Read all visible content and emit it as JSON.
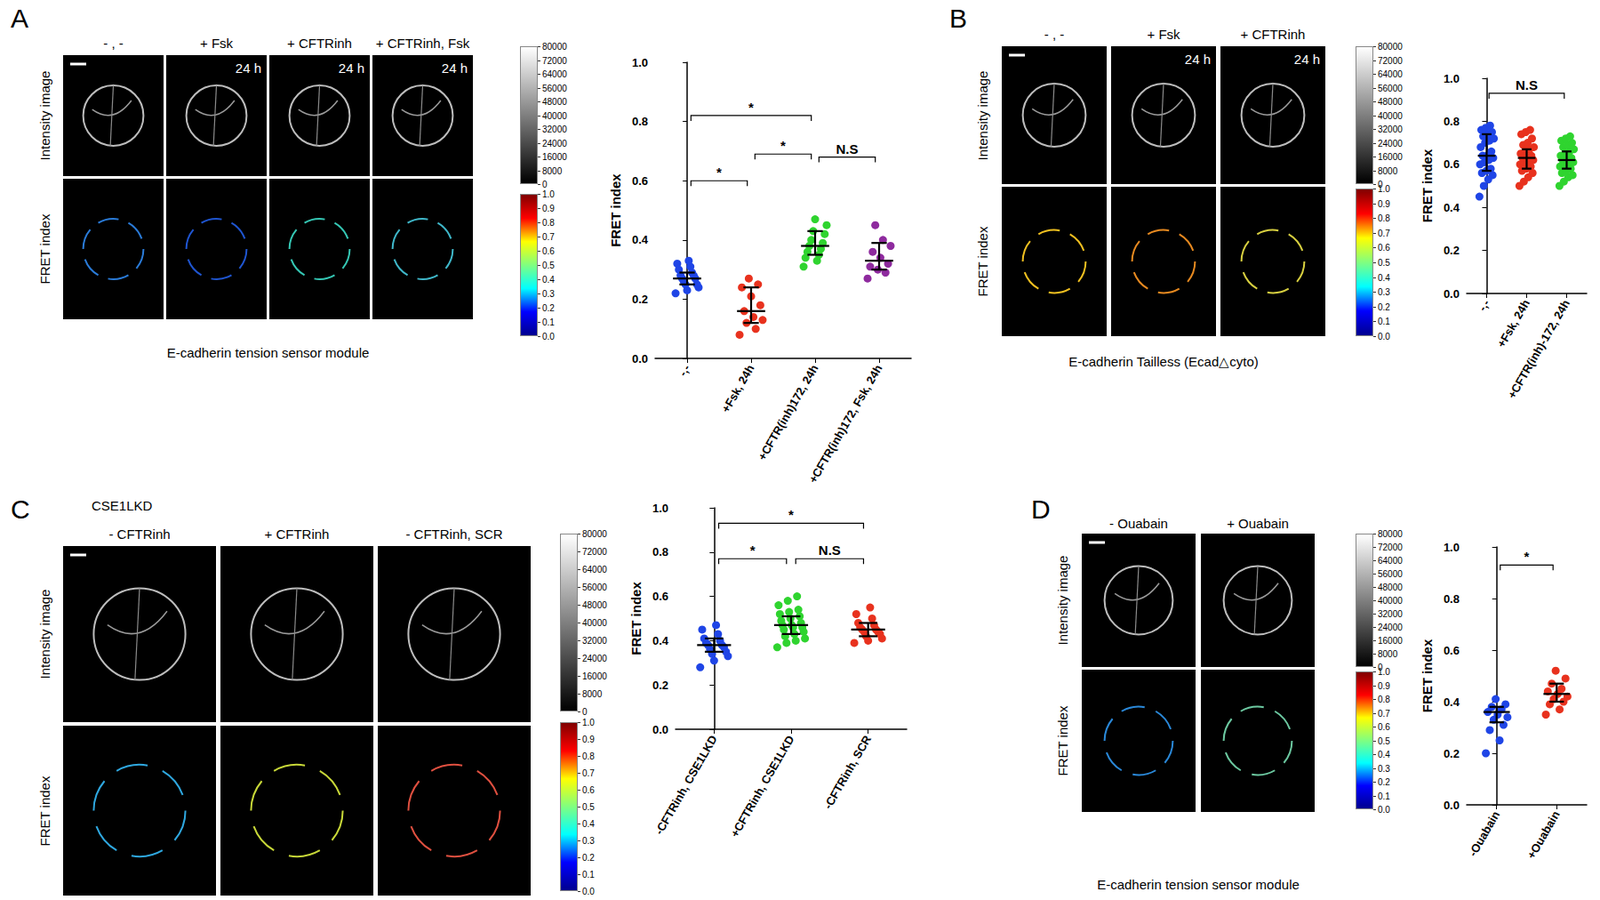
{
  "chart_data": [
    {
      "type": "scatter",
      "y_label": "FRET index",
      "categories": [
        "-,-",
        "+Fsk, 24h",
        "+CFTR(inh)172, 24h",
        "+CFTR(inh)172, Fsk, 24h"
      ],
      "colors": [
        "#1f45e6",
        "#e8321e",
        "#2fd42f",
        "#8e2a9e"
      ],
      "values": [
        [
          0.22,
          0.23,
          0.24,
          0.25,
          0.25,
          0.26,
          0.27,
          0.27,
          0.28,
          0.28,
          0.29,
          0.3,
          0.31,
          0.32,
          0.33
        ],
        [
          0.08,
          0.1,
          0.12,
          0.13,
          0.14,
          0.16,
          0.18,
          0.21,
          0.24,
          0.25,
          0.27
        ],
        [
          0.31,
          0.33,
          0.34,
          0.35,
          0.36,
          0.37,
          0.38,
          0.39,
          0.4,
          0.42,
          0.43,
          0.45,
          0.47
        ],
        [
          0.27,
          0.29,
          0.3,
          0.31,
          0.32,
          0.34,
          0.36,
          0.38,
          0.4,
          0.45
        ]
      ],
      "median": [
        0.27,
        0.16,
        0.38,
        0.33
      ],
      "iqr": [
        [
          0.25,
          0.29
        ],
        [
          0.12,
          0.24
        ],
        [
          0.35,
          0.43
        ],
        [
          0.3,
          0.39
        ]
      ],
      "annotations": [
        {
          "from": 0,
          "to": 1,
          "y": 0.6,
          "text": "*"
        },
        {
          "from": 1,
          "to": 2,
          "y": 0.69,
          "text": "*"
        },
        {
          "from": 0,
          "to": 2,
          "y": 0.82,
          "text": "*"
        },
        {
          "from": 2,
          "to": 3,
          "y": 0.68,
          "text": "N.S"
        }
      ],
      "ylim": [
        0,
        1
      ],
      "yticks": [
        {
          "value": 0,
          "label": "0.0"
        },
        {
          "value": 0.2,
          "label": "0.2"
        },
        {
          "value": 0.4,
          "label": "0.4"
        },
        {
          "value": 0.6,
          "label": "0.6"
        },
        {
          "value": 0.8,
          "label": "0.8"
        },
        {
          "value": 1,
          "label": "1.0"
        }
      ]
    },
    {
      "type": "scatter",
      "y_label": "FRET index",
      "categories": [
        "-,-",
        "+Fsk, 24h",
        "+CFTR(inh)-172, 24h"
      ],
      "colors": [
        "#1f45e6",
        "#e8321e",
        "#2fd42f"
      ],
      "values": [
        [
          0.45,
          0.5,
          0.53,
          0.55,
          0.56,
          0.57,
          0.58,
          0.6,
          0.61,
          0.62,
          0.63,
          0.64,
          0.64,
          0.66,
          0.68,
          0.7,
          0.71,
          0.72,
          0.73,
          0.74,
          0.75,
          0.76,
          0.77,
          0.78
        ],
        [
          0.5,
          0.52,
          0.54,
          0.56,
          0.57,
          0.58,
          0.59,
          0.6,
          0.61,
          0.62,
          0.62,
          0.63,
          0.63,
          0.64,
          0.65,
          0.66,
          0.67,
          0.68,
          0.69,
          0.7,
          0.72,
          0.74,
          0.75,
          0.76
        ],
        [
          0.5,
          0.52,
          0.54,
          0.55,
          0.56,
          0.57,
          0.58,
          0.59,
          0.6,
          0.61,
          0.61,
          0.62,
          0.62,
          0.63,
          0.64,
          0.65,
          0.66,
          0.67,
          0.68,
          0.69,
          0.7,
          0.71,
          0.72,
          0.73
        ]
      ],
      "median": [
        0.64,
        0.63,
        0.62
      ],
      "iqr": [
        [
          0.57,
          0.74
        ],
        [
          0.58,
          0.67
        ],
        [
          0.58,
          0.66
        ]
      ],
      "annotations": [
        {
          "from": 0,
          "to": 2,
          "y": 0.93,
          "text": "N.S"
        }
      ],
      "ylim": [
        0,
        1
      ],
      "yticks": [
        {
          "value": 0,
          "label": "0.0"
        },
        {
          "value": 0.2,
          "label": "0.2"
        },
        {
          "value": 0.4,
          "label": "0.4"
        },
        {
          "value": 0.6,
          "label": "0.6"
        },
        {
          "value": 0.8,
          "label": "0.8"
        },
        {
          "value": 1,
          "label": "1.0"
        }
      ]
    },
    {
      "type": "scatter",
      "y_label": "FRET index",
      "categories": [
        "-CFTRinh, CSE1LKD",
        "+CFTRinh, CSE1LKD",
        "-CFTRinh, SCR"
      ],
      "colors": [
        "#1f45e6",
        "#2fd42f",
        "#e8321e"
      ],
      "values": [
        [
          0.28,
          0.31,
          0.33,
          0.34,
          0.35,
          0.36,
          0.37,
          0.38,
          0.38,
          0.39,
          0.4,
          0.41,
          0.43,
          0.45,
          0.47
        ],
        [
          0.37,
          0.39,
          0.4,
          0.41,
          0.42,
          0.43,
          0.44,
          0.45,
          0.46,
          0.46,
          0.47,
          0.47,
          0.48,
          0.49,
          0.5,
          0.51,
          0.52,
          0.53,
          0.54,
          0.56,
          0.58,
          0.6
        ],
        [
          0.39,
          0.4,
          0.41,
          0.42,
          0.43,
          0.44,
          0.44,
          0.45,
          0.45,
          0.46,
          0.47,
          0.48,
          0.5,
          0.52,
          0.55
        ]
      ],
      "median": [
        0.38,
        0.47,
        0.45
      ],
      "iqr": [
        [
          0.35,
          0.41
        ],
        [
          0.43,
          0.51
        ],
        [
          0.42,
          0.48
        ]
      ],
      "annotations": [
        {
          "from": 0,
          "to": 1,
          "y": 0.77,
          "text": "*"
        },
        {
          "from": 1,
          "to": 2,
          "y": 0.77,
          "text": "N.S"
        },
        {
          "from": 0,
          "to": 2,
          "y": 0.93,
          "text": "*"
        }
      ],
      "ylim": [
        0,
        1
      ],
      "yticks": [
        {
          "value": 0,
          "label": "0.0"
        },
        {
          "value": 0.2,
          "label": "0.2"
        },
        {
          "value": 0.4,
          "label": "0.4"
        },
        {
          "value": 0.6,
          "label": "0.6"
        },
        {
          "value": 0.8,
          "label": "0.8"
        },
        {
          "value": 1,
          "label": "1.0"
        }
      ]
    },
    {
      "type": "scatter",
      "y_label": "FRET index",
      "categories": [
        "-Ouabain",
        "+Ouabain"
      ],
      "colors": [
        "#1f45e6",
        "#e8321e"
      ],
      "values": [
        [
          0.2,
          0.25,
          0.29,
          0.31,
          0.33,
          0.34,
          0.35,
          0.36,
          0.37,
          0.38,
          0.39,
          0.41
        ],
        [
          0.35,
          0.37,
          0.39,
          0.4,
          0.41,
          0.42,
          0.43,
          0.44,
          0.45,
          0.47,
          0.49,
          0.52
        ]
      ],
      "median": [
        0.36,
        0.43
      ],
      "iqr": [
        [
          0.32,
          0.38
        ],
        [
          0.4,
          0.47
        ]
      ],
      "annotations": [
        {
          "from": 0,
          "to": 1,
          "y": 0.93,
          "text": "*"
        }
      ],
      "ylim": [
        0,
        1
      ],
      "yticks": [
        {
          "value": 0,
          "label": "0.0"
        },
        {
          "value": 0.2,
          "label": "0.2"
        },
        {
          "value": 0.4,
          "label": "0.4"
        },
        {
          "value": 0.6,
          "label": "0.6"
        },
        {
          "value": 0.8,
          "label": "0.8"
        },
        {
          "value": 1,
          "label": "1.0"
        }
      ]
    }
  ],
  "figure": {
    "row_labels": [
      "Intensity image",
      "FRET index"
    ],
    "colorbars": {
      "intensity": {
        "range": [
          0,
          80000
        ],
        "ticks": [
          0,
          8000,
          16000,
          24000,
          32000,
          40000,
          48000,
          56000,
          64000,
          72000,
          80000
        ]
      },
      "fret": {
        "range": [
          0,
          1
        ],
        "ticks": [
          {
            "value": 0,
            "label": "0.0"
          },
          {
            "value": 0.1,
            "label": "0.1"
          },
          {
            "value": 0.2,
            "label": "0.2"
          },
          {
            "value": 0.3,
            "label": "0.3"
          },
          {
            "value": 0.4,
            "label": "0.4"
          },
          {
            "value": 0.5,
            "label": "0.5"
          },
          {
            "value": 0.6,
            "label": "0.6"
          },
          {
            "value": 0.7,
            "label": "0.7"
          },
          {
            "value": 0.8,
            "label": "0.8"
          },
          {
            "value": 0.9,
            "label": "0.9"
          },
          {
            "value": 1,
            "label": "1.0"
          }
        ]
      }
    },
    "panels": [
      {
        "label": "A",
        "columns": [
          {
            "header": "- , -"
          },
          {
            "header": "+ Fsk",
            "time": "24 h"
          },
          {
            "header": "+ CFTRinh",
            "time": "24 h"
          },
          {
            "header": "+ CFTRinh, Fsk",
            "time": "24 h"
          }
        ],
        "caption": "E-cadherin tension sensor module"
      },
      {
        "label": "B",
        "columns": [
          {
            "header": "- , -"
          },
          {
            "header": "+ Fsk",
            "time": "24 h"
          },
          {
            "header": "+ CFTRinh",
            "time": "24 h"
          }
        ],
        "caption": "E-cadherin Tailless (Ecad△cyto)"
      },
      {
        "label": "C",
        "title": "CSE1LKD",
        "columns": [
          {
            "header": "- CFTRinh"
          },
          {
            "header": "+ CFTRinh"
          },
          {
            "header": "- CFTRinh, SCR"
          }
        ]
      },
      {
        "label": "D",
        "columns": [
          {
            "header": "- Ouabain"
          },
          {
            "header": "+ Ouabain"
          }
        ],
        "caption": "E-cadherin tension sensor module"
      }
    ]
  }
}
